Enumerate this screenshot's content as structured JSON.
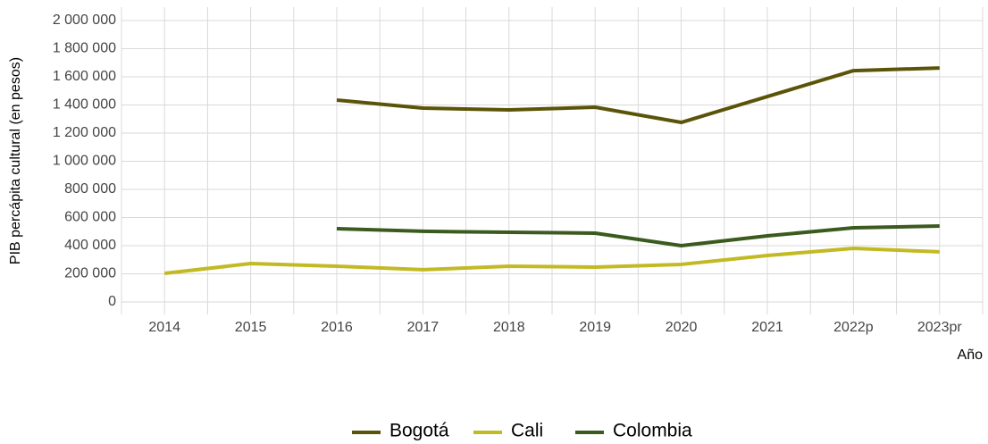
{
  "chart_data": {
    "type": "line",
    "y_label": "PIB percápita cultural (en pesos)",
    "x_label": "Año",
    "categories": [
      "2014",
      "2015",
      "2016",
      "2017",
      "2018",
      "2019",
      "2020",
      "2021",
      "2022p",
      "2023pr"
    ],
    "series": [
      {
        "name": "Bogotá",
        "color": "#5b5408",
        "values": [
          null,
          null,
          1435000,
          1378000,
          1365000,
          1384000,
          1276000,
          1460000,
          1644000,
          1663000
        ]
      },
      {
        "name": "Cali",
        "color": "#c2ba24",
        "values": [
          203000,
          273000,
          254000,
          229000,
          254000,
          248000,
          267000,
          330000,
          381000,
          356000
        ]
      },
      {
        "name": "Colombia",
        "color": "#3a5a1e",
        "values": [
          null,
          null,
          521000,
          502000,
          495000,
          489000,
          400000,
          470000,
          527000,
          540000
        ]
      }
    ],
    "ylim": [
      0,
      2000000
    ],
    "yticks": [
      0,
      {
        "value": 200000,
        "label": "200 000"
      },
      {
        "value": 400000,
        "label": "400 000"
      },
      {
        "value": 600000,
        "label": "600 000"
      },
      {
        "value": 800000,
        "label": "800 000"
      },
      {
        "value": 1000000,
        "label": "1 000 000"
      },
      {
        "value": 1200000,
        "label": "1 200 000"
      },
      {
        "value": 1400000,
        "label": "1 400 000"
      },
      {
        "value": 1600000,
        "label": "1 600 000"
      },
      {
        "value": 1800000,
        "label": "1 800 000"
      },
      {
        "value": 2000000,
        "label": "2 000 000"
      }
    ],
    "grid": true,
    "legend": "bottom"
  }
}
